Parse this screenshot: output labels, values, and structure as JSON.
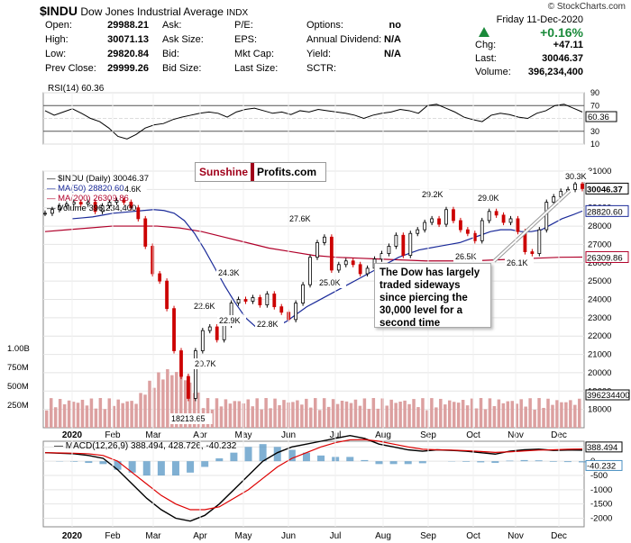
{
  "header": {
    "symbol": "$INDU",
    "name": "Dow Jones Industrial Average",
    "exchange": "INDX",
    "copyright": "© StockCharts.com",
    "date": "Friday  11-Dec-2020",
    "change_pct": "+0.16%",
    "rows": [
      [
        [
          "Open:",
          "29988.21"
        ],
        [
          "Ask:",
          ""
        ],
        [
          "P/E:",
          ""
        ],
        [
          "Options:",
          "no"
        ]
      ],
      [
        [
          "High:",
          "30071.13"
        ],
        [
          "Ask Size:",
          ""
        ],
        [
          "EPS:",
          ""
        ],
        [
          "Annual Dividend:",
          "N/A"
        ]
      ],
      [
        [
          "Low:",
          "29820.84"
        ],
        [
          "Bid:",
          ""
        ],
        [
          "Mkt Cap:",
          ""
        ],
        [
          "Yield:",
          "N/A"
        ]
      ],
      [
        [
          "Prev Close:",
          "29999.26"
        ],
        [
          "Bid Size:",
          ""
        ],
        [
          "Last Size:",
          ""
        ],
        [
          "SCTR:",
          ""
        ]
      ]
    ],
    "right": [
      [
        "Chg:",
        "+47.11"
      ],
      [
        "Last:",
        "30046.37"
      ],
      [
        "Volume:",
        "396,234,400"
      ]
    ]
  },
  "colors": {
    "up": "#000000",
    "down": "#cc0000",
    "ma50": "#1a2a99",
    "ma200": "#b0002a",
    "macd": "#000000",
    "signal": "#dd0000",
    "hist": "#4a8fc0",
    "volume": "#d88a8a",
    "rsi": "#000000",
    "logo_red": "#a0001a"
  },
  "logo": {
    "part1": "Sunshine",
    "part2": "Profits.com"
  },
  "annotation": "The Dow has largely traded sideways since piercing the 30,000 level for a second time",
  "chart_data": [
    {
      "type": "line",
      "title": "RSI(14) 60.36",
      "last": "60.36",
      "ylim": [
        10,
        90
      ],
      "yticks": [
        90,
        70,
        50,
        30,
        10
      ],
      "reference_lines": [
        70,
        30
      ],
      "values": [
        62,
        55,
        60,
        65,
        58,
        50,
        45,
        35,
        22,
        18,
        25,
        35,
        40,
        42,
        48,
        52,
        55,
        58,
        60,
        58,
        52,
        60,
        64,
        66,
        62,
        58,
        60,
        56,
        62,
        60,
        64,
        62,
        60,
        58,
        55,
        50,
        55,
        58,
        60,
        64,
        62,
        58,
        70,
        72,
        66,
        60,
        52,
        48,
        45,
        55,
        58,
        56,
        52,
        50,
        58,
        62,
        70,
        72,
        66,
        60
      ]
    },
    {
      "type": "line",
      "title": "$INDU (Daily) 30046.37",
      "ylim": [
        17000,
        31000
      ],
      "yticks": [
        31000,
        30000,
        29000,
        28000,
        27000,
        26000,
        25000,
        24000,
        23000,
        22000,
        21000,
        20000,
        19000,
        18000
      ],
      "x_labels": [
        "2020",
        "Feb",
        "Mar",
        "Apr",
        "May",
        "Jun",
        "Jul",
        "Aug",
        "Sep",
        "Oct",
        "Nov",
        "Dec"
      ],
      "last_labels": [
        "30046.37",
        "28820.60",
        "26309.86"
      ],
      "legend": [
        "$INDU (Daily) 30046.37",
        "MA(50) 28820.60",
        "MA(200) 26309.86",
        "Volume 396,234,400"
      ],
      "price": [
        28700,
        28900,
        29100,
        29200,
        29300,
        29200,
        29300,
        28800,
        29100,
        29300,
        29400,
        29300,
        29000,
        28400,
        26900,
        25400,
        25000,
        23500,
        21200,
        19800,
        18600,
        21200,
        22300,
        22500,
        21800,
        22600,
        23800,
        24000,
        23900,
        24100,
        23700,
        24300,
        23600,
        23300,
        22900,
        23800,
        24800,
        26300,
        27100,
        27400,
        25600,
        25900,
        26100,
        25900,
        25400,
        25700,
        26200,
        26500,
        26900,
        27500,
        26400,
        27600,
        27800,
        28200,
        28400,
        28100,
        28900,
        28300,
        27800,
        27600,
        27200,
        28300,
        28800,
        28600,
        28200,
        28400,
        27700,
        26600,
        26500,
        27800,
        29300,
        29600,
        29900,
        30000,
        30300,
        30046
      ],
      "ma50": [
        28400,
        28450,
        28500,
        28600,
        28700,
        28750,
        28800,
        28850,
        28900,
        28850,
        28700,
        28300,
        27600,
        26700,
        25700,
        24700,
        23800,
        23000,
        22500,
        22400,
        22500,
        22800,
        23200,
        23600,
        23900,
        24200,
        24500,
        24800,
        25100,
        25400,
        25700,
        26000,
        26300,
        26500,
        26700,
        26800,
        26900,
        27000,
        27100,
        27300,
        27500,
        27700,
        27800,
        27800,
        27700,
        27700,
        27800,
        28100,
        28400,
        28600,
        28820
      ],
      "ma200": [
        27700,
        27800,
        27900,
        28000,
        28000,
        28000,
        27900,
        27700,
        27400,
        27100,
        26800,
        26600,
        26400,
        26300,
        26250,
        26200,
        26150,
        26100,
        26100,
        26100,
        26150,
        26200,
        26250,
        26300,
        26310
      ],
      "volume_axis": [
        "1.00B",
        "750M",
        "500M",
        "250M"
      ],
      "volume_last": "396234400",
      "callouts": [
        {
          "text": "4.6K"
        },
        {
          "text": "18213.65"
        },
        {
          "text": "20.7K"
        },
        {
          "text": "22.6K"
        },
        {
          "text": "22.9K"
        },
        {
          "text": "24.3K"
        },
        {
          "text": "22.8K"
        },
        {
          "text": "27.6K"
        },
        {
          "text": "25.0K"
        },
        {
          "text": "29.2K"
        },
        {
          "text": "26.5K"
        },
        {
          "text": "29.0K"
        },
        {
          "text": "26.1K"
        },
        {
          "text": "30.3K"
        }
      ]
    },
    {
      "type": "line",
      "title": "MACD(12,26,9) 388.494, 428.726, -40.232",
      "series": [
        {
          "name": "MACD",
          "values": [
            300,
            280,
            260,
            200,
            100,
            -300,
            -800,
            -1300,
            -1700,
            -2000,
            -2100,
            -1900,
            -1500,
            -1000,
            -500,
            0,
            300,
            500,
            600,
            700,
            800,
            900,
            800,
            600,
            500,
            400,
            350,
            400,
            380,
            350,
            300,
            250,
            350,
            400,
            420,
            380,
            390,
            388
          ]
        },
        {
          "name": "Signal",
          "values": [
            300,
            290,
            280,
            260,
            200,
            0,
            -400,
            -800,
            -1200,
            -1500,
            -1700,
            -1700,
            -1600,
            -1300,
            -1000,
            -600,
            -200,
            100,
            300,
            500,
            650,
            750,
            760,
            700,
            600,
            500,
            420,
            400,
            390,
            370,
            340,
            310,
            330,
            360,
            390,
            400,
            420,
            429
          ]
        }
      ],
      "ylim": [
        -2300,
        700
      ],
      "yticks": [
        500,
        0,
        -500,
        -1000,
        -1500,
        -2000
      ],
      "last_labels": [
        "388.494",
        "-40.232"
      ],
      "x_labels": [
        "2020",
        "Feb",
        "Mar",
        "Apr",
        "May",
        "Jun",
        "Jul",
        "Aug",
        "Sep",
        "Oct",
        "Nov",
        "Dec"
      ]
    }
  ]
}
